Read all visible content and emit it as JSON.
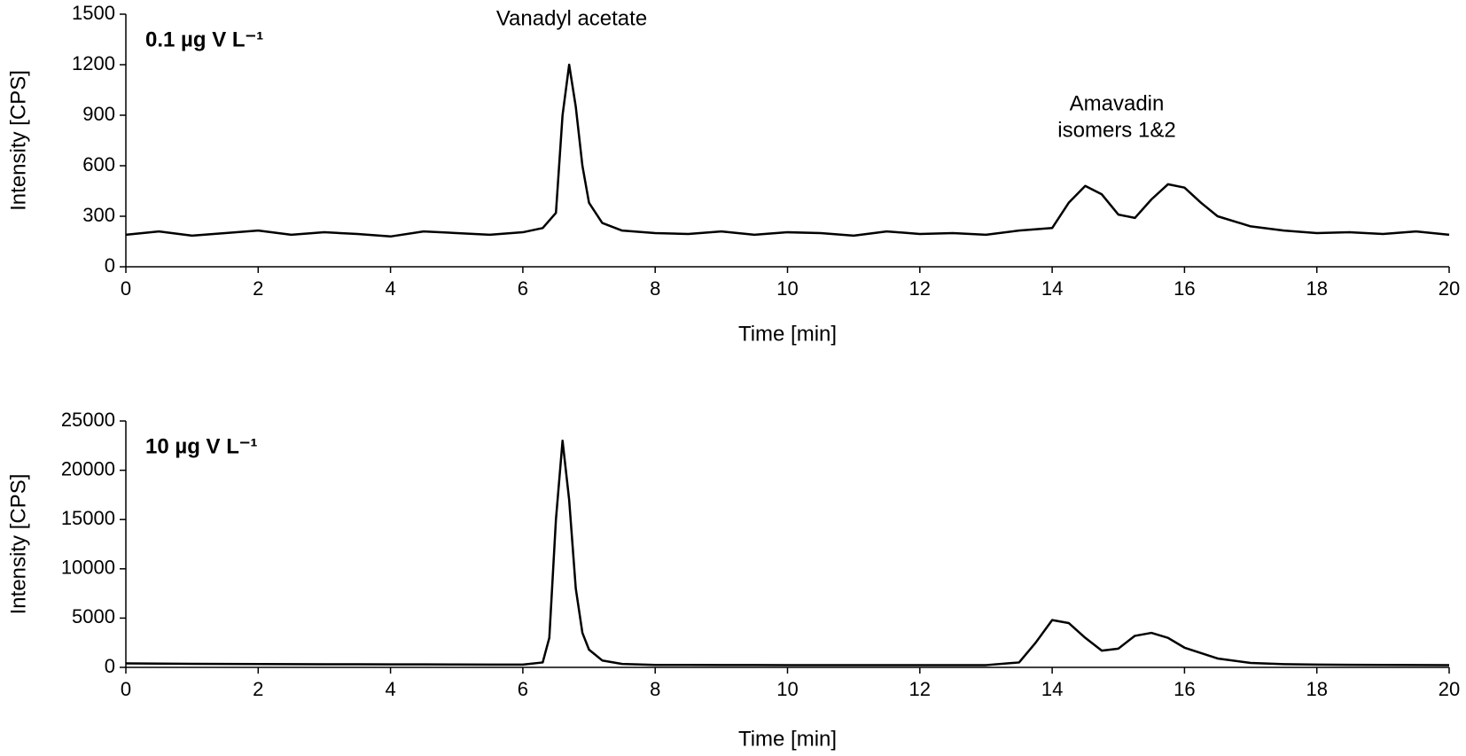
{
  "chart_data": [
    {
      "type": "line",
      "title": "0.1 µg V L⁻¹",
      "x_label": "Time [min]",
      "y_label": "Intensity [CPS]",
      "annotations": [
        [
          "Vanadyl acetate"
        ],
        [
          "Amavadin",
          "isomers 1&2"
        ]
      ],
      "x": [
        0,
        0.5,
        1,
        1.5,
        2,
        2.5,
        3,
        3.5,
        4,
        4.5,
        5,
        5.5,
        6,
        6.3,
        6.5,
        6.6,
        6.7,
        6.8,
        6.9,
        7.0,
        7.2,
        7.5,
        8,
        8.5,
        9,
        9.5,
        10,
        10.5,
        11,
        11.5,
        12,
        12.5,
        13,
        13.5,
        14,
        14.25,
        14.5,
        14.75,
        15,
        15.25,
        15.5,
        15.75,
        16,
        16.25,
        16.5,
        17,
        17.5,
        18,
        18.5,
        19,
        19.5,
        20
      ],
      "series": [
        {
          "color": "#000000",
          "values": [
            190,
            210,
            185,
            200,
            215,
            190,
            205,
            195,
            180,
            210,
            200,
            190,
            205,
            230,
            320,
            900,
            1200,
            950,
            600,
            380,
            260,
            215,
            200,
            195,
            210,
            190,
            205,
            200,
            185,
            210,
            195,
            200,
            190,
            215,
            230,
            380,
            480,
            430,
            310,
            290,
            400,
            490,
            470,
            380,
            300,
            240,
            215,
            200,
            205,
            195,
            210,
            190
          ]
        }
      ],
      "xlim": [
        0,
        20
      ],
      "xticks": [
        0,
        2,
        4,
        6,
        8,
        10,
        12,
        14,
        16,
        18,
        20
      ],
      "ylim": [
        0,
        1500
      ],
      "yticks": [
        0,
        300,
        600,
        900,
        1200,
        1500
      ],
      "grid": false
    },
    {
      "type": "line",
      "title": "10 µg V L⁻¹",
      "x_label": "Time [min]",
      "y_label": "Intensity [CPS]",
      "x": [
        0,
        0.5,
        1,
        1.5,
        2,
        2.5,
        3,
        3.5,
        4,
        4.5,
        5,
        5.5,
        6,
        6.3,
        6.4,
        6.5,
        6.6,
        6.7,
        6.8,
        6.9,
        7.0,
        7.2,
        7.5,
        8,
        8.5,
        9,
        9.5,
        10,
        10.5,
        11,
        11.5,
        12,
        12.5,
        13,
        13.5,
        13.75,
        14,
        14.25,
        14.5,
        14.75,
        15,
        15.25,
        15.5,
        15.75,
        16,
        16.5,
        17,
        17.5,
        18,
        18.5,
        19,
        19.5,
        20
      ],
      "series": [
        {
          "color": "#000000",
          "values": [
            400,
            380,
            360,
            350,
            340,
            330,
            320,
            310,
            300,
            300,
            290,
            280,
            280,
            500,
            3000,
            15000,
            23000,
            17000,
            8000,
            3500,
            1800,
            700,
            350,
            250,
            250,
            240,
            240,
            230,
            230,
            230,
            220,
            220,
            220,
            230,
            500,
            2500,
            4800,
            4500,
            3000,
            1700,
            1900,
            3200,
            3500,
            3000,
            2000,
            900,
            450,
            330,
            280,
            260,
            250,
            240,
            230
          ]
        }
      ],
      "xlim": [
        0,
        20
      ],
      "xticks": [
        0,
        2,
        4,
        6,
        8,
        10,
        12,
        14,
        16,
        18,
        20
      ],
      "ylim": [
        0,
        25000
      ],
      "yticks": [
        0,
        5000,
        10000,
        15000,
        20000,
        25000
      ],
      "grid": false
    }
  ]
}
